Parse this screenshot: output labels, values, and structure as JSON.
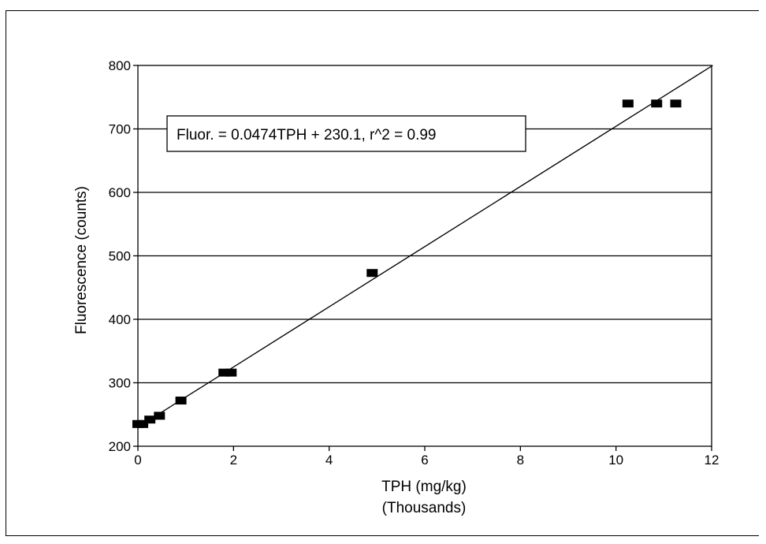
{
  "chart_data": {
    "type": "scatter",
    "title": "",
    "xlabel": "TPH  (mg/kg)",
    "xlabel_sub": "(Thousands)",
    "ylabel": "Fluorescence  (counts)",
    "xlim": [
      0,
      12
    ],
    "ylim": [
      200,
      800
    ],
    "xticks": [
      0,
      2,
      4,
      6,
      8,
      10,
      12
    ],
    "yticks": [
      200,
      300,
      400,
      500,
      600,
      700,
      800
    ],
    "grid": "horizontal",
    "legend": "none",
    "annotation": "Fluor. = 0.0474TPH + 230.1, r^2 = 0.99",
    "fit_line": {
      "slope": 0.0474,
      "intercept": 230.1,
      "x_units": "mg/kg"
    },
    "series": [
      {
        "points": [
          [
            0.0,
            235
          ],
          [
            0.1,
            235
          ],
          [
            0.25,
            242
          ],
          [
            0.45,
            248
          ],
          [
            0.9,
            272
          ],
          [
            1.8,
            316
          ],
          [
            1.95,
            316
          ],
          [
            4.9,
            473
          ],
          [
            10.25,
            740
          ],
          [
            10.85,
            740
          ],
          [
            11.25,
            740
          ]
        ],
        "marker": "square",
        "color": "#000000"
      }
    ]
  }
}
